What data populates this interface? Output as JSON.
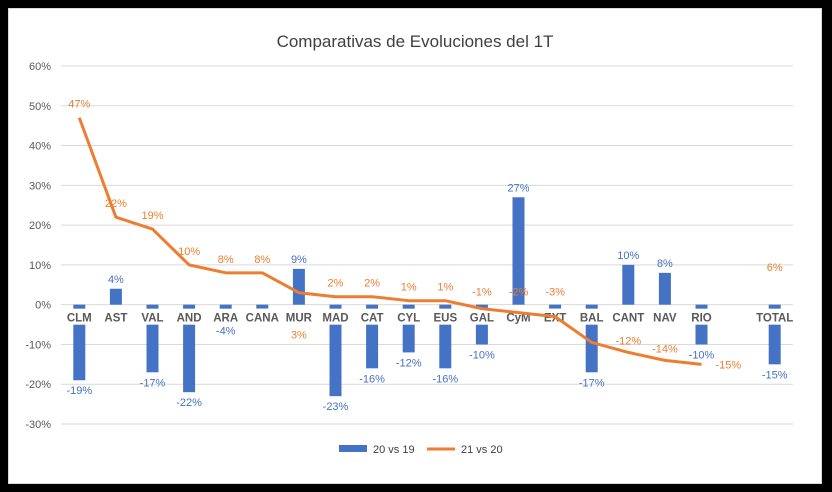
{
  "chart_data": {
    "type": "bar+line",
    "title": "Comparativas de Evoluciones del 1T",
    "xlabel": "",
    "ylabel": "",
    "ylim": [
      -30,
      60
    ],
    "yticks": [
      "-30%",
      "-20%",
      "-10%",
      "0%",
      "10%",
      "20%",
      "30%",
      "40%",
      "50%",
      "60%"
    ],
    "ytick_values": [
      -30,
      -20,
      -10,
      0,
      10,
      20,
      30,
      40,
      50,
      60
    ],
    "grid": true,
    "legend_position": "bottom",
    "categories": [
      "CLM",
      "AST",
      "VAL",
      "AND",
      "ARA",
      "CANA",
      "MUR",
      "MAD",
      "CAT",
      "CYL",
      "EUS",
      "GAL",
      "CyM",
      "EXT",
      "BAL",
      "CANT",
      "NAV",
      "RIO",
      "",
      "TOTAL"
    ],
    "series": [
      {
        "name": "20 vs 19",
        "type": "bar",
        "color": "#4472c4",
        "values": [
          -19,
          4,
          -17,
          -22,
          -4,
          -1,
          9,
          -23,
          -16,
          -12,
          -16,
          -10,
          27,
          -1,
          -17,
          10,
          8,
          -10,
          null,
          -15
        ],
        "labels": [
          "-19%",
          "4%",
          "-17%",
          "-22%",
          "-4%",
          "",
          "9%",
          "-23%",
          "-16%",
          "-12%",
          "-16%",
          "-10%",
          "27%",
          "",
          "-17%",
          "10%",
          "8%",
          "-10%",
          "",
          "-15%"
        ]
      },
      {
        "name": "21 vs 20",
        "type": "line",
        "color": "#ed7d31",
        "values": [
          47,
          22,
          19,
          10,
          8,
          8,
          3,
          2,
          2,
          1,
          1,
          -1,
          -2,
          -3,
          -9.5,
          -12,
          -14,
          -15,
          null,
          6
        ],
        "labels": [
          "47%",
          "22%",
          "19%",
          "10%",
          "8%",
          "8%",
          "3%",
          "2%",
          "2%",
          "1%",
          "1%",
          "-1%",
          "-2%",
          "-3%",
          "",
          "-12%",
          "-14%",
          "-15%",
          "",
          "6%"
        ]
      }
    ]
  }
}
